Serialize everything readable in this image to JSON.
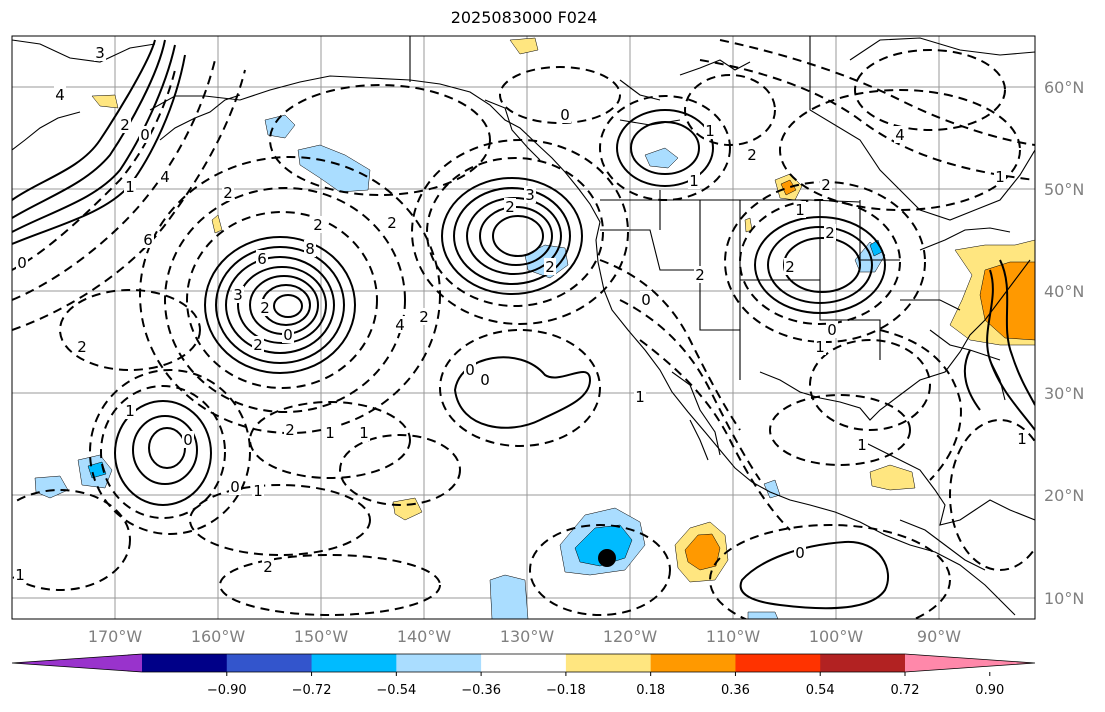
{
  "title": "2025083000 F024",
  "lat_labels": [
    "60°N",
    "50°N",
    "40°N",
    "30°N",
    "20°N",
    "10°N"
  ],
  "lon_labels": [
    "170°W",
    "160°W",
    "150°W",
    "140°W",
    "130°W",
    "120°W",
    "110°W",
    "100°W",
    "90°W"
  ],
  "colorbar": {
    "colors": [
      "#9933cc",
      "#000088",
      "#3355cc",
      "#00bbff",
      "#aaddff",
      "#ffffff",
      "#ffe680",
      "#ff9900",
      "#ff3300",
      "#b22222",
      "#ff88aa"
    ],
    "tick_labels": [
      "−0.90",
      "−0.72",
      "−0.54",
      "−0.36",
      "−0.18",
      "0.18",
      "0.36",
      "0.54",
      "0.72",
      "0.90"
    ]
  },
  "contour_labels": [
    "3",
    "4",
    "2",
    "0",
    "6",
    "3",
    "2",
    "0",
    "2",
    "2",
    "6",
    "8",
    "4",
    "2",
    "0",
    "1",
    "2",
    "2",
    "4",
    "3",
    "0",
    "2",
    "2",
    "0",
    "2",
    "2",
    "2",
    "1",
    "0",
    "1",
    "1",
    "2",
    "2",
    "1",
    "1",
    "0",
    "0",
    "1",
    "0",
    "1",
    "2",
    "2",
    "1",
    "1",
    "1",
    "0",
    "2",
    "1",
    "1",
    "4",
    "1",
    "0"
  ]
}
